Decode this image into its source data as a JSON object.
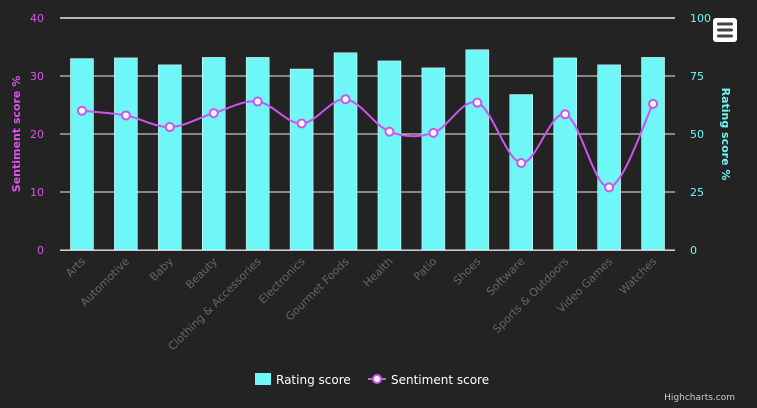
{
  "chart_data": {
    "type": "bar",
    "categories": [
      "Arts",
      "Automotive",
      "Baby",
      "Beauty",
      "Clothing & Accessories",
      "Electronics",
      "Gourmet Foods",
      "Health",
      "Patio",
      "Shoes",
      "Software",
      "Sports & Outdoors",
      "Video Games",
      "Watches"
    ],
    "series": [
      {
        "name": "Rating score",
        "type": "column",
        "axis": "right",
        "color": "#6ff6f6",
        "values": [
          82.5,
          82.8,
          79.8,
          83.0,
          83.0,
          78.0,
          85.0,
          81.5,
          78.5,
          86.3,
          67.0,
          82.8,
          79.8,
          83.0
        ]
      },
      {
        "name": "Sentiment score",
        "type": "spline",
        "axis": "left",
        "color": "#cc55ee",
        "values": [
          24.0,
          23.2,
          21.2,
          23.6,
          25.6,
          21.8,
          26.0,
          20.4,
          20.2,
          25.4,
          15.0,
          23.4,
          10.8,
          25.2
        ]
      }
    ],
    "y_left": {
      "label": "Sentiment score %",
      "min": 0,
      "max": 40,
      "ticks": [
        0,
        10,
        20,
        30,
        40
      ],
      "color": "#dd55ee"
    },
    "y_right": {
      "label": "Rating score %",
      "min": 0,
      "max": 100,
      "ticks": [
        0,
        25,
        50,
        75,
        100
      ],
      "color": "#6ff6f6"
    },
    "grid": true,
    "legend": "bottom-center",
    "credits": "Highcharts.com",
    "colors": {
      "background": "#232323",
      "grid": "#e8e8e8",
      "category_label": "#666666"
    },
    "menu_icon": "hamburger-menu-icon"
  }
}
